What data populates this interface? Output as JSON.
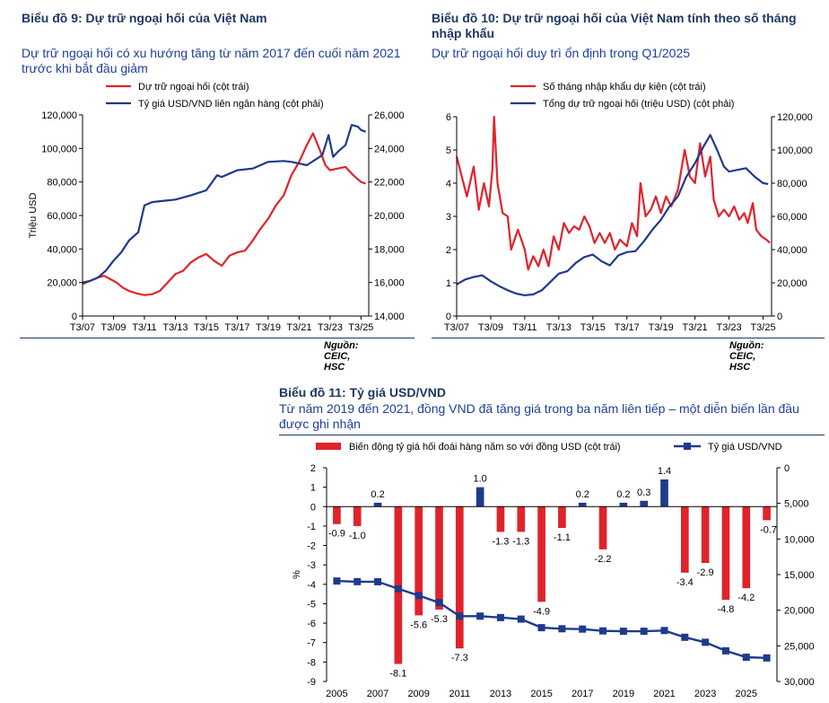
{
  "charts": {
    "c9": {
      "title": "Biểu đồ 9: Dự trữ ngoại hối của Việt Nam",
      "subtitle": "Dự trữ ngoại hối có xu hướng tăng từ năm 2017 đến cuối năm 2021 trước khi bắt đầu giảm",
      "source": "Nguồn: CEIC, HSC"
    },
    "c10": {
      "title": "Biểu đồ 10: Dự trữ ngoại hối của Việt Nam tính theo số tháng nhập khẩu",
      "subtitle": "Dự trữ ngoại hối duy trì ổn định trong Q1/2025",
      "source": "Nguồn: CEIC, HSC"
    },
    "c11": {
      "title": "Biểu đồ 11: Tỷ giá USD/VND",
      "subtitle": "Từ năm 2019 đến 2021, đồng VND đã tăng giá trong ba năm liên tiếp – một diễn biến lần đầu được ghi nhận"
    }
  },
  "colors": {
    "red": "#e0232b",
    "blue": "#1f3a8c",
    "title": "#1f3864"
  },
  "chart_data": [
    {
      "id": "c9",
      "type": "line",
      "ylabel": "Triệu USD",
      "x_ticks": [
        "T3/07",
        "T3/09",
        "T3/11",
        "T3/13",
        "T3/15",
        "T3/17",
        "T3/19",
        "T3/21",
        "T3/23",
        "T3/25"
      ],
      "x_range": [
        2007.0,
        2025.5
      ],
      "left_axis": {
        "range": [
          0,
          120000
        ],
        "ticks": [
          "0",
          "20,000",
          "40,000",
          "60,000",
          "80,000",
          "100,000",
          "120,000"
        ]
      },
      "right_axis": {
        "range": [
          14000,
          26000
        ],
        "ticks": [
          "14,000",
          "16,000",
          "18,000",
          "20,000",
          "22,000",
          "24,000",
          "26,000"
        ]
      },
      "legend": [
        "Dự trữ ngoại hối (cột trái)",
        "Tỷ giá USD/VND liên ngân hàng (cột phải)"
      ],
      "series": [
        {
          "name": "Dự trữ ngoại hối (cột trái)",
          "axis": "left",
          "color": "red",
          "points": [
            [
              2007.0,
              19000
            ],
            [
              2007.5,
              21000
            ],
            [
              2008.0,
              23000
            ],
            [
              2008.4,
              24000
            ],
            [
              2008.8,
              22000
            ],
            [
              2009.2,
              20000
            ],
            [
              2009.6,
              17000
            ],
            [
              2010.0,
              15000
            ],
            [
              2010.5,
              13500
            ],
            [
              2011.0,
              12500
            ],
            [
              2011.5,
              13000
            ],
            [
              2012.0,
              15000
            ],
            [
              2012.5,
              20000
            ],
            [
              2013.0,
              25000
            ],
            [
              2013.5,
              27000
            ],
            [
              2014.0,
              32000
            ],
            [
              2014.5,
              35000
            ],
            [
              2015.0,
              37000
            ],
            [
              2015.5,
              33000
            ],
            [
              2016.0,
              30000
            ],
            [
              2016.5,
              36000
            ],
            [
              2017.0,
              38000
            ],
            [
              2017.5,
              39000
            ],
            [
              2018.0,
              45000
            ],
            [
              2018.5,
              52000
            ],
            [
              2019.0,
              58000
            ],
            [
              2019.5,
              66000
            ],
            [
              2020.0,
              72000
            ],
            [
              2020.5,
              84000
            ],
            [
              2021.0,
              92000
            ],
            [
              2021.5,
              102000
            ],
            [
              2021.9,
              109000
            ],
            [
              2022.3,
              100000
            ],
            [
              2022.7,
              90000
            ],
            [
              2023.0,
              87000
            ],
            [
              2023.5,
              88000
            ],
            [
              2024.0,
              89000
            ],
            [
              2024.5,
              84000
            ],
            [
              2025.0,
              80000
            ],
            [
              2025.3,
              79000
            ]
          ]
        },
        {
          "name": "Tỷ giá USD/VND liên ngân hàng (cột phải)",
          "axis": "right",
          "color": "blue",
          "points": [
            [
              2007.0,
              16000
            ],
            [
              2007.5,
              16100
            ],
            [
              2008.0,
              16300
            ],
            [
              2008.5,
              16700
            ],
            [
              2009.0,
              17300
            ],
            [
              2009.5,
              17800
            ],
            [
              2010.0,
              18500
            ],
            [
              2010.6,
              19000
            ],
            [
              2011.0,
              20600
            ],
            [
              2011.5,
              20800
            ],
            [
              2012.0,
              20850
            ],
            [
              2013.0,
              20950
            ],
            [
              2014.0,
              21200
            ],
            [
              2015.0,
              21500
            ],
            [
              2015.7,
              22400
            ],
            [
              2016.0,
              22300
            ],
            [
              2017.0,
              22700
            ],
            [
              2018.0,
              22800
            ],
            [
              2019.0,
              23200
            ],
            [
              2020.0,
              23250
            ],
            [
              2020.5,
              23200
            ],
            [
              2021.0,
              23100
            ],
            [
              2021.5,
              23000
            ],
            [
              2022.0,
              23300
            ],
            [
              2022.5,
              23600
            ],
            [
              2022.9,
              24800
            ],
            [
              2023.2,
              23500
            ],
            [
              2023.5,
              23800
            ],
            [
              2024.0,
              24200
            ],
            [
              2024.4,
              25400
            ],
            [
              2024.8,
              25300
            ],
            [
              2025.0,
              25100
            ],
            [
              2025.3,
              25000
            ]
          ]
        }
      ]
    },
    {
      "id": "c10",
      "type": "line",
      "x_ticks": [
        "T3/07",
        "T3/09",
        "T3/11",
        "T3/13",
        "T3/15",
        "T3/17",
        "T3/19",
        "T3/21",
        "T3/23",
        "T3/25"
      ],
      "x_range": [
        2007.0,
        2025.5
      ],
      "left_axis": {
        "range": [
          0,
          6
        ],
        "ticks": [
          "0",
          "1",
          "2",
          "3",
          "4",
          "5",
          "6"
        ]
      },
      "right_axis": {
        "range": [
          0,
          120000
        ],
        "ticks": [
          "0",
          "20,000",
          "40,000",
          "60,000",
          "80,000",
          "100,000",
          "120,000"
        ]
      },
      "legend": [
        "Số tháng nhập khẩu dự kiện (cột trái)",
        "Tổng dự trữ ngoại hối (triệu USD) (cột phải)"
      ],
      "series": [
        {
          "name": "Số tháng nhập khẩu dự kiện (cột trái)",
          "axis": "left",
          "color": "red",
          "points": [
            [
              2007.0,
              4.8
            ],
            [
              2007.3,
              4.2
            ],
            [
              2007.6,
              3.6
            ],
            [
              2008.0,
              4.5
            ],
            [
              2008.3,
              3.2
            ],
            [
              2008.6,
              4.0
            ],
            [
              2008.9,
              3.3
            ],
            [
              2009.1,
              4.4
            ],
            [
              2009.2,
              6.0
            ],
            [
              2009.4,
              4.0
            ],
            [
              2009.7,
              3.1
            ],
            [
              2010.0,
              3.0
            ],
            [
              2010.2,
              2.0
            ],
            [
              2010.6,
              2.6
            ],
            [
              2011.0,
              2.0
            ],
            [
              2011.2,
              1.4
            ],
            [
              2011.5,
              1.8
            ],
            [
              2011.8,
              1.5
            ],
            [
              2012.1,
              2.0
            ],
            [
              2012.4,
              1.5
            ],
            [
              2012.7,
              2.4
            ],
            [
              2013.0,
              2.0
            ],
            [
              2013.3,
              2.8
            ],
            [
              2013.6,
              2.5
            ],
            [
              2013.9,
              2.7
            ],
            [
              2014.2,
              2.6
            ],
            [
              2014.5,
              3.0
            ],
            [
              2014.8,
              2.7
            ],
            [
              2015.1,
              2.2
            ],
            [
              2015.4,
              2.5
            ],
            [
              2015.7,
              2.2
            ],
            [
              2016.0,
              2.5
            ],
            [
              2016.3,
              2.0
            ],
            [
              2016.6,
              2.3
            ],
            [
              2017.0,
              2.1
            ],
            [
              2017.3,
              2.8
            ],
            [
              2017.6,
              2.4
            ],
            [
              2017.8,
              4.0
            ],
            [
              2018.1,
              3.0
            ],
            [
              2018.4,
              3.2
            ],
            [
              2018.7,
              3.6
            ],
            [
              2019.0,
              3.1
            ],
            [
              2019.3,
              3.6
            ],
            [
              2019.6,
              3.3
            ],
            [
              2020.0,
              3.8
            ],
            [
              2020.2,
              4.4
            ],
            [
              2020.4,
              5.0
            ],
            [
              2020.7,
              4.2
            ],
            [
              2021.0,
              4.0
            ],
            [
              2021.3,
              5.2
            ],
            [
              2021.6,
              4.2
            ],
            [
              2021.9,
              4.8
            ],
            [
              2022.1,
              3.5
            ],
            [
              2022.4,
              3.0
            ],
            [
              2022.7,
              3.2
            ],
            [
              2023.0,
              3.0
            ],
            [
              2023.3,
              3.3
            ],
            [
              2023.6,
              2.9
            ],
            [
              2023.9,
              3.1
            ],
            [
              2024.1,
              2.8
            ],
            [
              2024.4,
              3.4
            ],
            [
              2024.6,
              2.6
            ],
            [
              2024.9,
              2.4
            ],
            [
              2025.2,
              2.3
            ],
            [
              2025.4,
              2.2
            ]
          ]
        },
        {
          "name": "Tổng dự trữ ngoại hối (triệu USD) (cột phải)",
          "axis": "right",
          "color": "blue",
          "points": [
            [
              2007.0,
              19000
            ],
            [
              2007.5,
              22000
            ],
            [
              2008.0,
              23500
            ],
            [
              2008.5,
              24500
            ],
            [
              2009.0,
              21000
            ],
            [
              2009.5,
              18000
            ],
            [
              2010.0,
              15500
            ],
            [
              2010.5,
              13500
            ],
            [
              2011.0,
              12500
            ],
            [
              2011.5,
              13000
            ],
            [
              2012.0,
              15500
            ],
            [
              2012.5,
              20500
            ],
            [
              2013.0,
              25500
            ],
            [
              2013.5,
              27000
            ],
            [
              2014.0,
              32000
            ],
            [
              2014.5,
              35500
            ],
            [
              2015.0,
              37000
            ],
            [
              2015.5,
              33000
            ],
            [
              2016.0,
              30500
            ],
            [
              2016.5,
              36500
            ],
            [
              2017.0,
              38500
            ],
            [
              2017.5,
              39000
            ],
            [
              2018.0,
              45000
            ],
            [
              2018.5,
              52000
            ],
            [
              2019.0,
              58000
            ],
            [
              2019.5,
              66000
            ],
            [
              2020.0,
              72000
            ],
            [
              2020.5,
              84000
            ],
            [
              2021.0,
              92000
            ],
            [
              2021.5,
              102000
            ],
            [
              2021.9,
              109000
            ],
            [
              2022.3,
              100000
            ],
            [
              2022.7,
              90000
            ],
            [
              2023.0,
              87000
            ],
            [
              2023.5,
              88000
            ],
            [
              2024.0,
              89000
            ],
            [
              2024.5,
              84000
            ],
            [
              2025.0,
              80000
            ],
            [
              2025.3,
              79500
            ]
          ]
        }
      ]
    },
    {
      "id": "c11",
      "type": "bar+line",
      "ylabel": "%",
      "years": [
        2005,
        2006,
        2007,
        2008,
        2009,
        2010,
        2011,
        2012,
        2013,
        2014,
        2015,
        2016,
        2017,
        2018,
        2019,
        2020,
        2021,
        2022,
        2023,
        2024,
        2025,
        2026
      ],
      "x_tick_labels": [
        "2005",
        "2007",
        "2009",
        "2011",
        "2013",
        "2015",
        "2017",
        "2019",
        "2021",
        "2023",
        "2025"
      ],
      "left_axis": {
        "range": [
          -9,
          2
        ],
        "ticks": [
          "-9",
          "-8",
          "-7",
          "-6",
          "-5",
          "-4",
          "-3",
          "-2",
          "-1",
          "0",
          "1",
          "2"
        ]
      },
      "right_axis": {
        "range": [
          30000,
          0
        ],
        "inverted": true,
        "ticks": [
          "30,000",
          "25,000",
          "20,000",
          "15,000",
          "10,000",
          "5,000",
          "0"
        ]
      },
      "legend": [
        "Biến động tỷ giá hối đoái hàng năm so với đồng USD (cột trái)",
        "Tỷ giá USD/VND"
      ],
      "bars": [
        -0.9,
        -1.0,
        0.2,
        -8.1,
        -5.6,
        -5.3,
        -7.3,
        1.0,
        -1.3,
        -1.3,
        -4.9,
        -1.1,
        0.2,
        -2.2,
        0.2,
        0.3,
        1.4,
        -3.4,
        -2.9,
        -4.8,
        -4.2,
        -0.7
      ],
      "bar_labels": [
        "-0.9",
        "-1.0",
        "0.2",
        "-8.1",
        "-5.6",
        "-5.3",
        "-7.3",
        "1.0",
        "-1.3",
        "-1.3",
        "-4.9",
        "-1.1",
        "0.2",
        "-2.2",
        "0.2",
        "0.3",
        "1.4",
        "-3.4",
        "-2.9",
        "-4.8",
        "-4.2",
        "-0.7"
      ],
      "rate": [
        15900,
        15990,
        16000,
        16990,
        17940,
        18930,
        20830,
        20830,
        21030,
        21250,
        22450,
        22600,
        22650,
        22900,
        22950,
        22950,
        22850,
        23800,
        24500,
        25700,
        26600,
        26700
      ]
    }
  ]
}
